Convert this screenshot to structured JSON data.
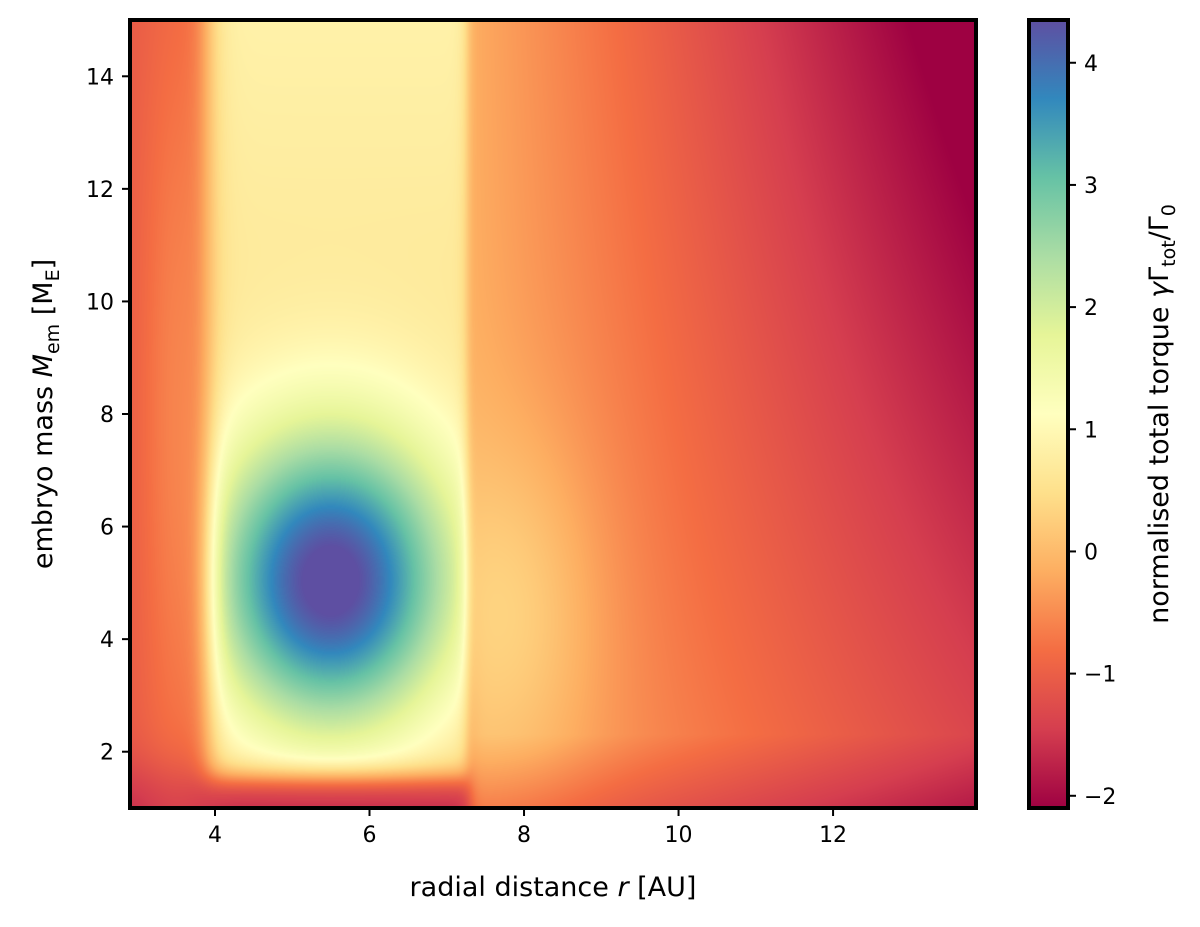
{
  "chart_data": {
    "type": "heatmap",
    "xlabel": "radial distance r [AU]",
    "ylabel": "embryo mass M_em [M_E]",
    "colorbar_label": "normalised total torque γΓ_tot/Γ_0",
    "xlim": [
      2.9,
      13.85
    ],
    "ylim": [
      1.0,
      15.0
    ],
    "clim": [
      -2.1,
      4.35
    ],
    "colormap": "Spectral",
    "colormap_stops": [
      "#9e0142",
      "#d53e4f",
      "#f46d43",
      "#fdae61",
      "#fee08b",
      "#ffffbf",
      "#e6f598",
      "#abdda4",
      "#66c2a5",
      "#3288bd",
      "#5e4fa2"
    ],
    "x_ticks": [
      "4",
      "6",
      "8",
      "10",
      "12"
    ],
    "y_ticks": [
      "2",
      "4",
      "6",
      "8",
      "10",
      "12",
      "14"
    ],
    "colorbar_ticks": [
      "−2",
      "−1",
      "0",
      "1",
      "2",
      "3",
      "4"
    ],
    "features": [
      {
        "region": "inner positive-torque zone",
        "r_range": [
          3.9,
          7.3
        ],
        "mass_range": [
          3.0,
          15.0
        ],
        "peak_value": 4.3,
        "peak_at": {
          "r": 5.5,
          "M": 5.0
        }
      },
      {
        "region": "outer negative-torque zone",
        "r_range": [
          7.3,
          13.85
        ],
        "min_value": -2.1,
        "min_at": {
          "r": 13.2,
          "M": 13.5
        }
      }
    ]
  }
}
